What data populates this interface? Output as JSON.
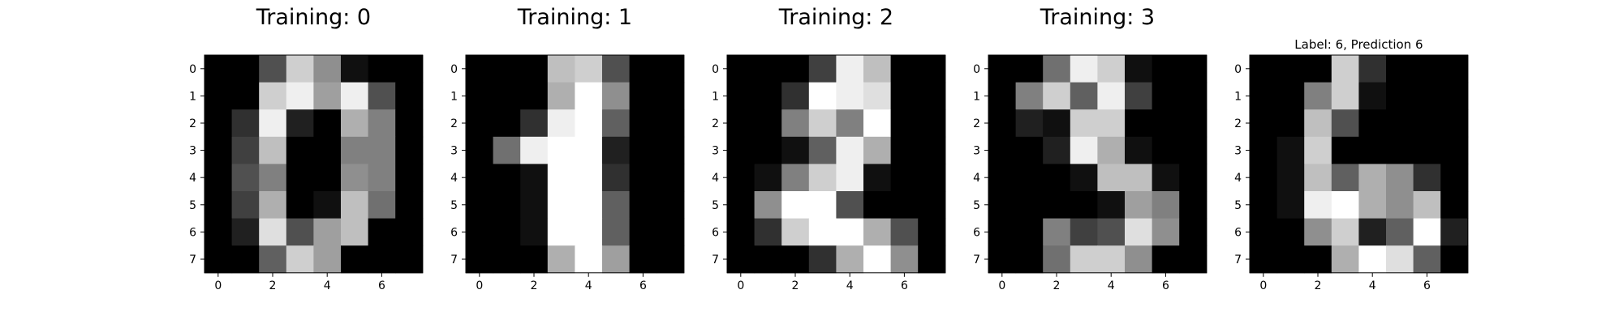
{
  "chart_data": [
    {
      "type": "heatmap",
      "title": "Training: 0",
      "xlabel": "",
      "ylabel": "",
      "colormap": "gray_r",
      "value_range": [
        0,
        16
      ],
      "x_ticks": [
        0,
        2,
        4,
        6
      ],
      "y_ticks": [
        0,
        1,
        2,
        3,
        4,
        5,
        6,
        7
      ],
      "grid": false,
      "values": [
        [
          0,
          0,
          5,
          13,
          9,
          1,
          0,
          0
        ],
        [
          0,
          0,
          13,
          15,
          10,
          15,
          5,
          0
        ],
        [
          0,
          3,
          15,
          2,
          0,
          11,
          8,
          0
        ],
        [
          0,
          4,
          12,
          0,
          0,
          8,
          8,
          0
        ],
        [
          0,
          5,
          8,
          0,
          0,
          9,
          8,
          0
        ],
        [
          0,
          4,
          11,
          0,
          1,
          12,
          7,
          0
        ],
        [
          0,
          2,
          14,
          5,
          10,
          12,
          0,
          0
        ],
        [
          0,
          0,
          6,
          13,
          10,
          0,
          0,
          0
        ]
      ]
    },
    {
      "type": "heatmap",
      "title": "Training: 1",
      "xlabel": "",
      "ylabel": "",
      "colormap": "gray_r",
      "value_range": [
        0,
        16
      ],
      "x_ticks": [
        0,
        2,
        4,
        6
      ],
      "y_ticks": [
        0,
        1,
        2,
        3,
        4,
        5,
        6,
        7
      ],
      "grid": false,
      "values": [
        [
          0,
          0,
          0,
          12,
          13,
          5,
          0,
          0
        ],
        [
          0,
          0,
          0,
          11,
          16,
          9,
          0,
          0
        ],
        [
          0,
          0,
          3,
          15,
          16,
          6,
          0,
          0
        ],
        [
          0,
          7,
          15,
          16,
          16,
          2,
          0,
          0
        ],
        [
          0,
          0,
          1,
          16,
          16,
          3,
          0,
          0
        ],
        [
          0,
          0,
          1,
          16,
          16,
          6,
          0,
          0
        ],
        [
          0,
          0,
          1,
          16,
          16,
          6,
          0,
          0
        ],
        [
          0,
          0,
          0,
          11,
          16,
          10,
          0,
          0
        ]
      ]
    },
    {
      "type": "heatmap",
      "title": "Training: 2",
      "xlabel": "",
      "ylabel": "",
      "colormap": "gray_r",
      "value_range": [
        0,
        16
      ],
      "x_ticks": [
        0,
        2,
        4,
        6
      ],
      "y_ticks": [
        0,
        1,
        2,
        3,
        4,
        5,
        6,
        7
      ],
      "grid": false,
      "values": [
        [
          0,
          0,
          0,
          4,
          15,
          12,
          0,
          0
        ],
        [
          0,
          0,
          3,
          16,
          15,
          14,
          0,
          0
        ],
        [
          0,
          0,
          8,
          13,
          8,
          16,
          0,
          0
        ],
        [
          0,
          0,
          1,
          6,
          15,
          11,
          0,
          0
        ],
        [
          0,
          1,
          8,
          13,
          15,
          1,
          0,
          0
        ],
        [
          0,
          9,
          16,
          16,
          5,
          0,
          0,
          0
        ],
        [
          0,
          3,
          13,
          16,
          16,
          11,
          5,
          0
        ],
        [
          0,
          0,
          0,
          3,
          11,
          16,
          9,
          0
        ]
      ]
    },
    {
      "type": "heatmap",
      "title": "Training: 3",
      "xlabel": "",
      "ylabel": "",
      "colormap": "gray_r",
      "value_range": [
        0,
        16
      ],
      "x_ticks": [
        0,
        2,
        4,
        6
      ],
      "y_ticks": [
        0,
        1,
        2,
        3,
        4,
        5,
        6,
        7
      ],
      "grid": false,
      "values": [
        [
          0,
          0,
          7,
          15,
          13,
          1,
          0,
          0
        ],
        [
          0,
          8,
          13,
          6,
          15,
          4,
          0,
          0
        ],
        [
          0,
          2,
          1,
          13,
          13,
          0,
          0,
          0
        ],
        [
          0,
          0,
          2,
          15,
          11,
          1,
          0,
          0
        ],
        [
          0,
          0,
          0,
          1,
          12,
          12,
          1,
          0
        ],
        [
          0,
          0,
          0,
          0,
          1,
          10,
          8,
          0
        ],
        [
          0,
          0,
          8,
          4,
          5,
          14,
          9,
          0
        ],
        [
          0,
          0,
          7,
          13,
          13,
          9,
          0,
          0
        ]
      ]
    },
    {
      "type": "heatmap",
      "title": "Label: 6, Prediction 6",
      "xlabel": "",
      "ylabel": "",
      "colormap": "gray_r",
      "value_range": [
        0,
        16
      ],
      "x_ticks": [
        0,
        2,
        4,
        6
      ],
      "y_ticks": [
        0,
        1,
        2,
        3,
        4,
        5,
        6,
        7
      ],
      "grid": false,
      "values": [
        [
          0,
          0,
          0,
          13,
          3,
          0,
          0,
          0
        ],
        [
          0,
          0,
          8,
          13,
          1,
          0,
          0,
          0
        ],
        [
          0,
          0,
          12,
          5,
          0,
          0,
          0,
          0
        ],
        [
          0,
          1,
          13,
          0,
          0,
          0,
          0,
          0
        ],
        [
          0,
          1,
          12,
          6,
          11,
          9,
          3,
          0
        ],
        [
          0,
          1,
          15,
          16,
          11,
          9,
          12,
          0
        ],
        [
          0,
          0,
          9,
          13,
          2,
          6,
          16,
          2
        ],
        [
          0,
          0,
          0,
          11,
          16,
          14,
          6,
          0
        ]
      ]
    }
  ]
}
